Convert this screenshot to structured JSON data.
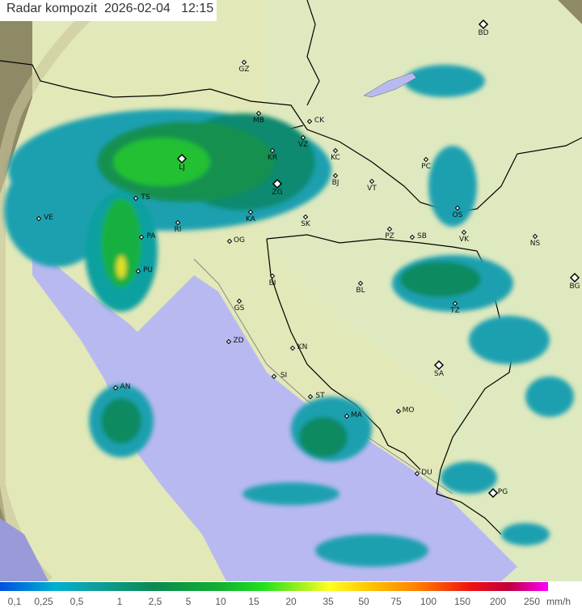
{
  "title": {
    "label": "Radar kompozit",
    "date": "2026-02-04",
    "time": "12:15"
  },
  "cities": [
    {
      "name": "GZ"
    },
    {
      "name": "BD",
      "major": true
    },
    {
      "name": "MB"
    },
    {
      "name": "CK"
    },
    {
      "name": "VZ"
    },
    {
      "name": "KR"
    },
    {
      "name": "KC"
    },
    {
      "name": "PC"
    },
    {
      "name": "LJ",
      "major": true
    },
    {
      "name": "ZG",
      "major": true
    },
    {
      "name": "BJ"
    },
    {
      "name": "VT"
    },
    {
      "name": "TS"
    },
    {
      "name": "KA"
    },
    {
      "name": "SK"
    },
    {
      "name": "OS"
    },
    {
      "name": "VE"
    },
    {
      "name": "RI"
    },
    {
      "name": "PA"
    },
    {
      "name": "PZ"
    },
    {
      "name": "SB"
    },
    {
      "name": "VK"
    },
    {
      "name": "NS"
    },
    {
      "name": "OG"
    },
    {
      "name": "PU"
    },
    {
      "name": "BI"
    },
    {
      "name": "BL"
    },
    {
      "name": "BG",
      "major": true
    },
    {
      "name": "GS"
    },
    {
      "name": "TZ"
    },
    {
      "name": "ZD"
    },
    {
      "name": "KN"
    },
    {
      "name": "SA",
      "major": true
    },
    {
      "name": "SI"
    },
    {
      "name": "ST"
    },
    {
      "name": "AN"
    },
    {
      "name": "MO"
    },
    {
      "name": "MA"
    },
    {
      "name": "DU"
    },
    {
      "name": "PG",
      "major": true
    }
  ],
  "legend": {
    "unit": "mm/h",
    "ticks": [
      "0,1",
      "0,25",
      "0,5",
      "1",
      "2,5",
      "5",
      "10",
      "15",
      "20",
      "35",
      "50",
      "75",
      "100",
      "150",
      "200",
      "250"
    ],
    "colors": {
      "low": "#0050e0",
      "mid": "#20e020",
      "high": "#ffff20",
      "very_high": "#f01010",
      "extreme": "#ff00ff"
    }
  },
  "colors": {
    "sea": "#b8b8f0",
    "land": "#e6ecbc",
    "outside": "#8a8560",
    "border": "#000000"
  }
}
